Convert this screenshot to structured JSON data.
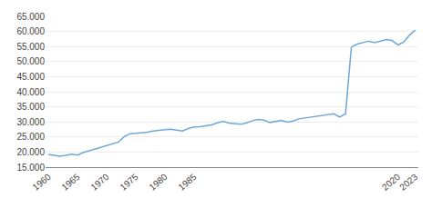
{
  "chart_data": {
    "type": "line",
    "x": [
      1960,
      1961,
      1962,
      1963,
      1964,
      1965,
      1966,
      1967,
      1968,
      1969,
      1970,
      1971,
      1972,
      1973,
      1974,
      1975,
      1976,
      1977,
      1978,
      1979,
      1980,
      1981,
      1982,
      1983,
      1984,
      1985,
      1986,
      1987,
      1988,
      1989,
      1990,
      1991,
      1992,
      1993,
      1994,
      1995,
      1996,
      1997,
      1998,
      1999,
      2000,
      2001,
      2002,
      2003,
      2004,
      2005,
      2006,
      2007,
      2008,
      2009,
      2010,
      2011,
      2012,
      2013,
      2014,
      2015,
      2016,
      2017,
      2018,
      2019,
      2020,
      2021,
      2022,
      2023
    ],
    "values": [
      19200,
      18900,
      18600,
      18900,
      19300,
      19000,
      19900,
      20400,
      21000,
      21600,
      22300,
      22900,
      23300,
      25100,
      26100,
      26200,
      26300,
      26600,
      27000,
      27300,
      27400,
      27600,
      27300,
      27000,
      27800,
      28300,
      28400,
      28700,
      29000,
      29700,
      30200,
      29600,
      29400,
      29200,
      29700,
      30400,
      30800,
      30600,
      29800,
      30100,
      30500,
      29900,
      30300,
      31000,
      31300,
      31600,
      31900,
      32100,
      32500,
      32700,
      31600,
      32700,
      54800,
      55800,
      56300,
      56800,
      56300,
      56800,
      57300,
      57000,
      55500,
      56500,
      58800,
      60500
    ],
    "color": "#6fa8d6",
    "xlim": [
      1959.5,
      2023.5
    ],
    "xticks": [
      1960,
      1965,
      1970,
      1975,
      1980,
      1985,
      2020,
      2023
    ],
    "ylim": [
      15000,
      65000
    ],
    "yticks": [
      {
        "value": 15000,
        "label": "15.000"
      },
      {
        "value": 20000,
        "label": "20.000"
      },
      {
        "value": 25000,
        "label": "25.000"
      },
      {
        "value": 30000,
        "label": "30.000"
      },
      {
        "value": 35000,
        "label": "35.000"
      },
      {
        "value": 40000,
        "label": "40.000"
      },
      {
        "value": 45000,
        "label": "45.000"
      },
      {
        "value": 50000,
        "label": "50.000"
      },
      {
        "value": 55000,
        "label": "55.000"
      },
      {
        "value": 60000,
        "label": "60.000"
      },
      {
        "value": 65000,
        "label": "65.000"
      }
    ],
    "grid": true
  }
}
